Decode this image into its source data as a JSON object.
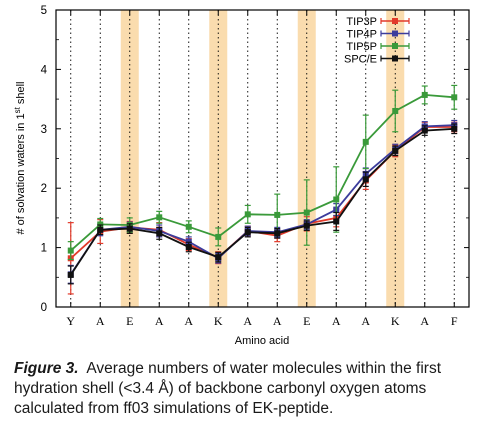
{
  "chart_data": {
    "type": "line",
    "xlabel": "Amino acid",
    "ylabel_parts": [
      "# of solvation waters in 1",
      "st",
      " shell"
    ],
    "ylim": [
      0,
      5
    ],
    "yticks": [
      "0",
      "1",
      "2",
      "3",
      "4",
      "5"
    ],
    "categories": [
      "Y",
      "A",
      "E",
      "A",
      "A",
      "K",
      "A",
      "A",
      "E",
      "A",
      "A",
      "K",
      "A",
      "F"
    ],
    "highlighted_indices": [
      2,
      5,
      8,
      11
    ],
    "highlight_color": "#fadcae",
    "grid": "vertical dotted",
    "legend_position": "top-right",
    "series": [
      {
        "name": "TIP3P",
        "color": "#e23a2a",
        "marker": "square",
        "values": [
          0.82,
          1.27,
          1.34,
          1.3,
          1.05,
          0.83,
          1.28,
          1.2,
          1.4,
          1.5,
          2.13,
          2.63,
          3.03,
          3.03
        ],
        "errors": [
          0.6,
          0.2,
          0.1,
          0.12,
          0.1,
          0.1,
          0.08,
          0.1,
          0.12,
          0.15,
          0.15,
          0.1,
          0.08,
          0.08
        ]
      },
      {
        "name": "TIP4P",
        "color": "#3c3c9c",
        "marker": "square",
        "values": [
          0.55,
          1.3,
          1.35,
          1.28,
          1.1,
          0.82,
          1.28,
          1.26,
          1.39,
          1.64,
          2.24,
          2.66,
          3.04,
          3.06
        ],
        "errors": [
          0.15,
          0.1,
          0.08,
          0.1,
          0.08,
          0.08,
          0.08,
          0.08,
          0.08,
          0.1,
          0.1,
          0.08,
          0.08,
          0.08
        ]
      },
      {
        "name": "TIP5P",
        "color": "#3a9a3a",
        "marker": "square",
        "values": [
          0.95,
          1.39,
          1.38,
          1.51,
          1.35,
          1.18,
          1.56,
          1.55,
          1.59,
          1.81,
          2.78,
          3.3,
          3.57,
          3.53
        ],
        "errors": [
          0.15,
          0.1,
          0.12,
          0.1,
          0.1,
          0.15,
          0.15,
          0.35,
          0.55,
          0.55,
          0.45,
          0.35,
          0.15,
          0.2
        ]
      },
      {
        "name": "SPC/E",
        "color": "#111111",
        "marker": "square",
        "values": [
          0.54,
          1.3,
          1.32,
          1.24,
          1.01,
          0.84,
          1.26,
          1.24,
          1.37,
          1.44,
          2.15,
          2.63,
          2.97,
          3.0
        ],
        "errors": [
          0.15,
          0.08,
          0.08,
          0.1,
          0.08,
          0.08,
          0.08,
          0.08,
          0.08,
          0.15,
          0.12,
          0.08,
          0.08,
          0.08
        ]
      }
    ]
  },
  "caption": {
    "label": "Figure 3.",
    "text": "Average numbers of water molecules within the first hydration shell (<3.4 Å) of backbone carbonyl oxygen atoms calculated from ff03 simulations of EK-peptide."
  }
}
